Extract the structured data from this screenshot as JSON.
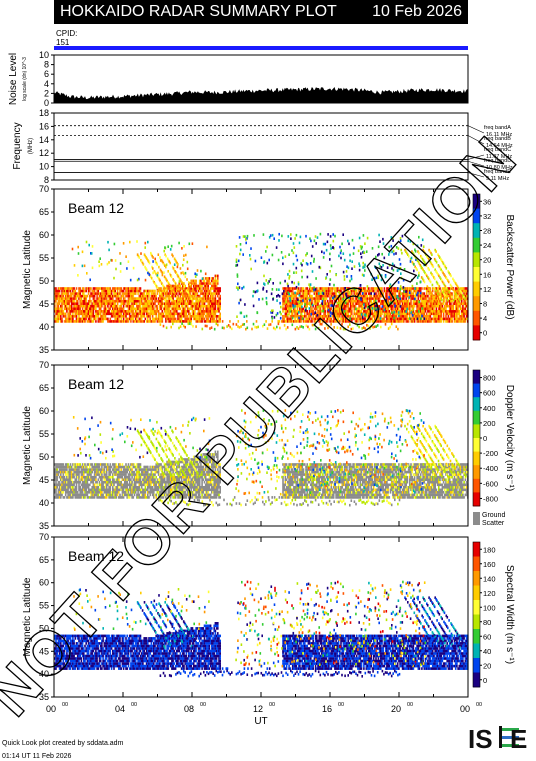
{
  "header": {
    "title": "HOKKAIDO RADAR SUMMARY PLOT",
    "date": "10 Feb 2026"
  },
  "cpid": {
    "label": "CPID:",
    "value": "151"
  },
  "watermark": "NOT FOR PUBLICATION",
  "footer": {
    "line1": "Quick Look plot created by sddata.adm",
    "line2": "01:14 UT 11 Feb 2026"
  },
  "logo_text": "ISEE",
  "colors": {
    "cpid_bar": "#1a1aff",
    "ground_scatter": "#8c8c8c",
    "header_bg": "#000000"
  },
  "x_axis": {
    "label": "UT",
    "ticks": [
      "00",
      "04",
      "08",
      "12",
      "16",
      "20",
      "00"
    ],
    "tick_sup": "00",
    "range_hours": [
      0,
      24
    ]
  },
  "chart_data": [
    {
      "type": "area",
      "name": "noise",
      "ylabel": "Noise Level",
      "ylabel_sub": "log scale (dn) 10^-3",
      "ylim": [
        0,
        10
      ],
      "yticks": [
        "0",
        "2",
        "4",
        "6",
        "8",
        "10"
      ],
      "x_hours": [
        0,
        1,
        2,
        3,
        4,
        5,
        6,
        7,
        8,
        9,
        10,
        11,
        12,
        13,
        14,
        15,
        16,
        17,
        18,
        19,
        20,
        21,
        22,
        23,
        24
      ],
      "values": [
        2.2,
        1.3,
        1.1,
        1.3,
        1.4,
        1.6,
        1.8,
        2.0,
        2.3,
        2.2,
        2.3,
        2.5,
        2.6,
        2.7,
        2.8,
        2.9,
        3.0,
        2.9,
        2.6,
        2.2,
        2.4,
        2.7,
        2.8,
        2.6,
        2.5
      ]
    },
    {
      "type": "line",
      "name": "frequency",
      "ylabel": "Frequency",
      "ylabel_unit": "(MHz)",
      "ylim": [
        8,
        18
      ],
      "yticks": [
        "8",
        "10",
        "12",
        "14",
        "16",
        "18"
      ],
      "bands": [
        {
          "label": "freq bandA",
          "freq": "16.11 MHz",
          "value": 16.11
        },
        {
          "label": "freq bandB",
          "freq": "14.64 MHz",
          "value": 14.64
        },
        {
          "label": "freq bandC",
          "freq": "11.07 MHz",
          "value": 11.07
        },
        {
          "label": "freq bandD",
          "freq": "10.80 MHz",
          "value": 10.8
        },
        {
          "label": "freq bandE",
          "freq": "9.11 MHz",
          "value": 9.11
        }
      ]
    },
    {
      "type": "heatmap",
      "name": "power",
      "beam": "Beam 12",
      "ylabel": "Magnetic Latitude",
      "ylim": [
        35,
        70
      ],
      "yticks": [
        "35",
        "40",
        "45",
        "50",
        "55",
        "60",
        "65",
        "70"
      ],
      "colorbar_label": "Backscatter Power (dB)",
      "colorbar_ticks": [
        "0",
        "4",
        "8",
        "12",
        "16",
        "20",
        "24",
        "28",
        "32",
        "36"
      ],
      "colorscale": [
        "#e60000",
        "#ff5500",
        "#ff9900",
        "#ffcc00",
        "#ffff33",
        "#b8e600",
        "#33cc33",
        "#00b3b3",
        "#0044ee",
        "#1a0080"
      ],
      "scale_reversed": true
    },
    {
      "type": "heatmap",
      "name": "velocity",
      "beam": "Beam 12",
      "ylabel": "Magnetic Latitude",
      "ylim": [
        35,
        70
      ],
      "yticks": [
        "35",
        "40",
        "45",
        "50",
        "55",
        "60",
        "65",
        "70"
      ],
      "colorbar_label": "Doppler Velocity (m s⁻¹)",
      "colorbar_ticks": [
        "800",
        "600",
        "400",
        "200",
        "0",
        "-200",
        "-400",
        "-600",
        "-800"
      ],
      "colorscale": [
        "#1a0080",
        "#0044ee",
        "#00b3b3",
        "#33cc33",
        "#b8e600",
        "#ffff33",
        "#ffcc00",
        "#ff9900",
        "#ff5500",
        "#e60000"
      ],
      "ground_label": [
        "Ground",
        "Scatter"
      ]
    },
    {
      "type": "heatmap",
      "name": "width",
      "beam": "Beam 12",
      "ylabel": "Magnetic Latitude",
      "ylim": [
        35,
        70
      ],
      "yticks": [
        "35",
        "40",
        "45",
        "50",
        "55",
        "60",
        "65",
        "70"
      ],
      "colorbar_label": "Spectral Width (m s⁻¹)",
      "colorbar_ticks": [
        "0",
        "20",
        "40",
        "60",
        "80",
        "100",
        "120",
        "140",
        "160",
        "180"
      ],
      "colorscale": [
        "#1a0080",
        "#0044ee",
        "#00b3b3",
        "#33cc33",
        "#b8e600",
        "#ffff33",
        "#ffcc00",
        "#ff9900",
        "#ff5500",
        "#e60000"
      ],
      "scale_reversed": true
    }
  ]
}
